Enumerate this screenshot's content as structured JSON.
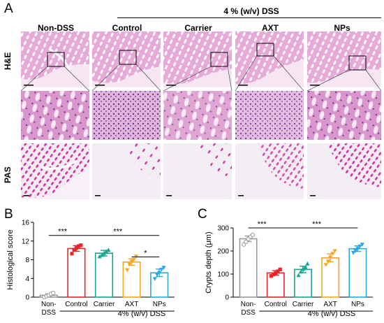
{
  "panel_a": {
    "letter": "A",
    "dss_header": "4 % (w/v) DSS",
    "columns": [
      "Non-DSS",
      "Control",
      "Carrier",
      "AXT",
      "NPs"
    ],
    "rows": [
      "H&E",
      "",
      "PAS"
    ]
  },
  "panel_b": {
    "letter": "B",
    "dss_group_label": "4% (w/v) DSS",
    "sig": [
      "***",
      "***",
      "*"
    ]
  },
  "panel_c": {
    "letter": "C",
    "dss_group_label": "4% (w/v) DSS",
    "sig": [
      "***",
      "***"
    ]
  },
  "colors": {
    "non_dss": "#9a9a9a",
    "control": "#e8262a",
    "carrier": "#19a58f",
    "axt": "#f5a623",
    "nps": "#2aa8e0",
    "he_tissue": "#c45aa8",
    "pas_tissue": "#c8399e"
  },
  "chart_data": [
    {
      "type": "bar",
      "categories": [
        "Non-DSS",
        "Control",
        "Carrier",
        "AXT",
        "NPs"
      ],
      "values": [
        0.4,
        10.4,
        9.4,
        7.5,
        5.2
      ],
      "errors": [
        0.3,
        0.6,
        0.6,
        0.7,
        0.8
      ],
      "points": [
        [
          0.0,
          0.2,
          0.4,
          0.7,
          0.9
        ],
        [
          9.3,
          10.1,
          10.5,
          10.9,
          11.1
        ],
        [
          8.7,
          9.0,
          9.4,
          9.8,
          10.1
        ],
        [
          5.8,
          7.0,
          7.6,
          8.0,
          8.7
        ],
        [
          3.9,
          4.8,
          5.2,
          5.9,
          6.3
        ]
      ],
      "point_markers": [
        "circle",
        "square",
        "triangle",
        "inverted-triangle",
        "inverted-triangle"
      ],
      "ylabel": "Histological score",
      "ylim": [
        0,
        16
      ],
      "yticks": [
        "0",
        "4",
        "8",
        "12",
        "16"
      ],
      "category_labels": [
        "Non-\nDSS",
        "Control",
        "Carrier",
        "AXT",
        "NPs"
      ],
      "grid": false
    },
    {
      "type": "bar",
      "categories": [
        "Non-DSS",
        "Control",
        "Carrier",
        "AXT",
        "NPs"
      ],
      "values": [
        253,
        105,
        120,
        170,
        210
      ],
      "errors": [
        12,
        10,
        14,
        17,
        12
      ],
      "points": [
        [
          228,
          240,
          252,
          262,
          270
        ],
        [
          92,
          98,
          104,
          112,
          120
        ],
        [
          95,
          110,
          122,
          130,
          145
        ],
        [
          140,
          155,
          172,
          188,
          200
        ],
        [
          192,
          200,
          210,
          220,
          228
        ]
      ],
      "point_markers": [
        "circle",
        "square",
        "triangle",
        "inverted-triangle",
        "inverted-triangle"
      ],
      "ylabel": "Crypts depth (μm)",
      "ylim": [
        0,
        300
      ],
      "yticks": [
        "0",
        "100",
        "200",
        "300"
      ],
      "category_labels": [
        "Non-\nDSS",
        "Control",
        "Carrier",
        "AXT",
        "NPs"
      ],
      "grid": false
    }
  ]
}
